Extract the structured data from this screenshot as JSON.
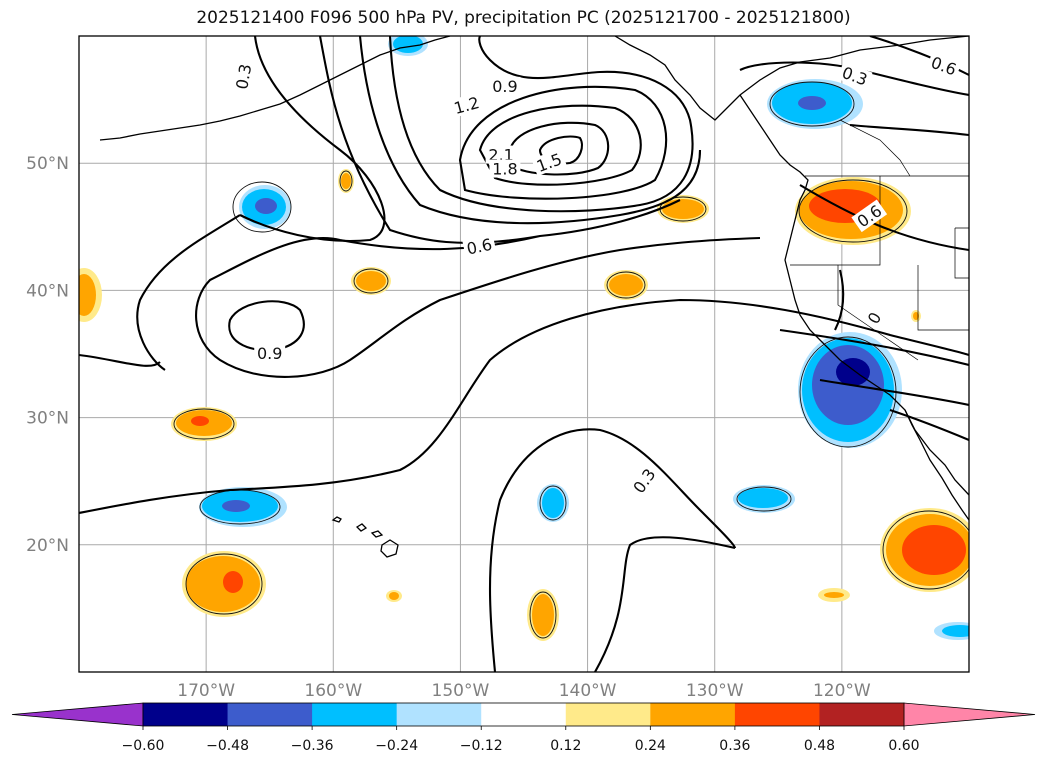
{
  "title": "2025121400 F096 500 hPa PV, precipitation PC (2025121700 - 2025121800)",
  "map": {
    "lon_range": [
      -180,
      -110
    ],
    "lat_range": [
      10,
      60
    ],
    "lat_ticks": [
      {
        "value": 50,
        "label": "50°N"
      },
      {
        "value": 40,
        "label": "40°N"
      },
      {
        "value": 30,
        "label": "30°N"
      },
      {
        "value": 20,
        "label": "20°N"
      }
    ],
    "lon_ticks": [
      {
        "value": -170,
        "label": "170°W"
      },
      {
        "value": -160,
        "label": "160°W"
      },
      {
        "value": -150,
        "label": "150°W"
      },
      {
        "value": -140,
        "label": "140°W"
      },
      {
        "value": -130,
        "label": "130°W"
      },
      {
        "value": -120,
        "label": "120°W"
      }
    ],
    "grid": true
  },
  "contour_labels": [
    {
      "text": "0.3",
      "lon": -167.0,
      "lat": 56.8,
      "rot": -80
    },
    {
      "text": "0.9",
      "lon": -146.5,
      "lat": 56.0,
      "rot": 0
    },
    {
      "text": "1.2",
      "lon": -149.5,
      "lat": 54.5,
      "rot": -15
    },
    {
      "text": "2.1",
      "lon": -146.8,
      "lat": 50.6,
      "rot": 0
    },
    {
      "text": "1.8",
      "lon": -146.5,
      "lat": 49.5,
      "rot": 0
    },
    {
      "text": "1.5",
      "lon": -143.0,
      "lat": 50.0,
      "rot": -20
    },
    {
      "text": "0.6",
      "lon": -148.5,
      "lat": 43.4,
      "rot": -12
    },
    {
      "text": "0.9",
      "lon": -165.0,
      "lat": 35.0,
      "rot": 0
    },
    {
      "text": "0.3",
      "lon": -135.5,
      "lat": 25.0,
      "rot": -55
    },
    {
      "text": "0.3",
      "lon": -119.0,
      "lat": 56.8,
      "rot": 20
    },
    {
      "text": "0.6",
      "lon": -112.0,
      "lat": 57.6,
      "rot": 20
    },
    {
      "text": "0.6",
      "lon": -117.8,
      "lat": 45.8,
      "rot": -35
    },
    {
      "text": "0",
      "lon": -117.4,
      "lat": 37.8,
      "rot": -60
    }
  ],
  "colorbar": {
    "ticks": [
      "−0.60",
      "−0.48",
      "−0.36",
      "−0.24",
      "−0.12",
      "0.12",
      "0.24",
      "0.36",
      "0.48",
      "0.60"
    ],
    "under_color": "#9932cc",
    "over_color": "#ff85a8",
    "colors": [
      "#00008b",
      "#3d5ccc",
      "#00bfff",
      "#b0e2ff",
      "#ffffff",
      "#ffea8a",
      "#ffa500",
      "#ff4500",
      "#b22222"
    ]
  }
}
